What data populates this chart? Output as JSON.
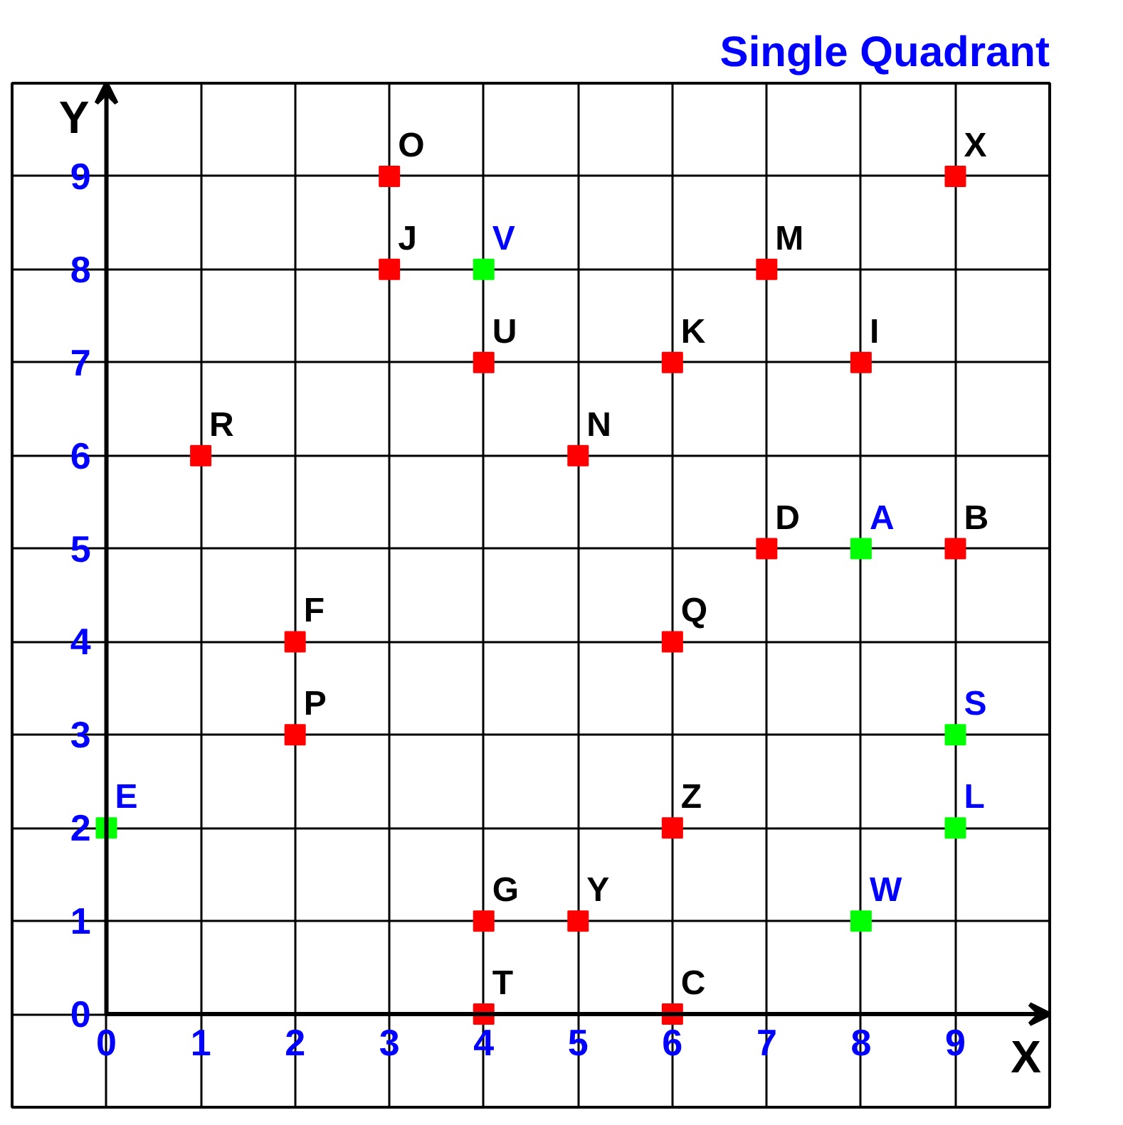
{
  "chart_data": {
    "type": "scatter",
    "title": "Single Quadrant",
    "xlabel": "X",
    "ylabel": "Y",
    "xlim": [
      -1,
      10
    ],
    "ylim": [
      -1,
      10
    ],
    "xticks": [
      0,
      1,
      2,
      3,
      4,
      5,
      6,
      7,
      8,
      9
    ],
    "yticks": [
      0,
      1,
      2,
      3,
      4,
      5,
      6,
      7,
      8,
      9
    ],
    "grid": true,
    "marker": "square",
    "series": [
      {
        "color": "#ff0000",
        "x": [
          3,
          9,
          3,
          7,
          4,
          6,
          8,
          1,
          5,
          7,
          9,
          2,
          6,
          2,
          6,
          4,
          5,
          4,
          6
        ],
        "values": [
          9,
          9,
          8,
          8,
          7,
          7,
          7,
          6,
          6,
          5,
          5,
          4,
          4,
          3,
          2,
          1,
          1,
          0,
          0
        ],
        "value_labels": [
          "O",
          "X",
          "J",
          "M",
          "U",
          "K",
          "I",
          "R",
          "N",
          "D",
          "B",
          "F",
          "Q",
          "P",
          "Z",
          "G",
          "Y",
          "T",
          "C"
        ]
      },
      {
        "color": "#00ff00",
        "x": [
          4,
          8,
          9,
          9,
          0,
          8
        ],
        "values": [
          8,
          5,
          3,
          2,
          2,
          1
        ],
        "value_labels": [
          "V",
          "A",
          "S",
          "L",
          "E",
          "W"
        ]
      }
    ]
  }
}
